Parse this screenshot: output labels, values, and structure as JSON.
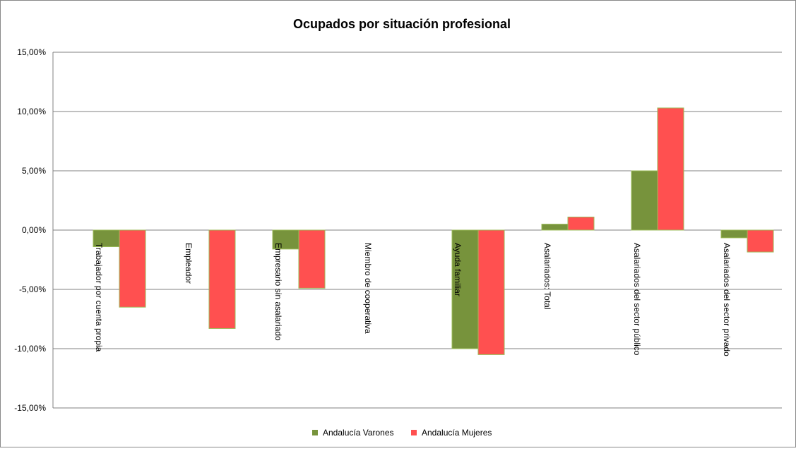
{
  "chart_data": {
    "type": "bar",
    "title": "Ocupados por situación profesional",
    "categories": [
      "Trabajador por cuenta propia",
      "Empleador",
      "Empresario sin asalariado",
      "Miembro de cooperativa",
      "Ayuda familiar",
      "Asalariados: Total",
      "Asalariados del sector público",
      "Asalariados del sector privado"
    ],
    "series": [
      {
        "name": "Andalucía Varones",
        "color": "#77933c",
        "values": [
          -1.4,
          0,
          -1.6,
          0,
          -10.0,
          0.5,
          5.0,
          -0.65
        ]
      },
      {
        "name": "Andalucía Mujeres",
        "color": "#ff5050",
        "values": [
          -6.5,
          -8.3,
          -4.9,
          0,
          -10.5,
          1.1,
          10.3,
          -1.85
        ]
      }
    ],
    "ylim": [
      -15,
      15
    ],
    "yticks": [
      {
        "value": -15,
        "label": "-15,00%"
      },
      {
        "value": -10,
        "label": "-10,00%"
      },
      {
        "value": -5,
        "label": "-5,00%"
      },
      {
        "value": 0,
        "label": "0,00%"
      },
      {
        "value": 5,
        "label": "5,00%"
      },
      {
        "value": 10,
        "label": "10,00%"
      },
      {
        "value": 15,
        "label": "15,00%"
      }
    ],
    "grid": true,
    "legend": "bottom"
  }
}
